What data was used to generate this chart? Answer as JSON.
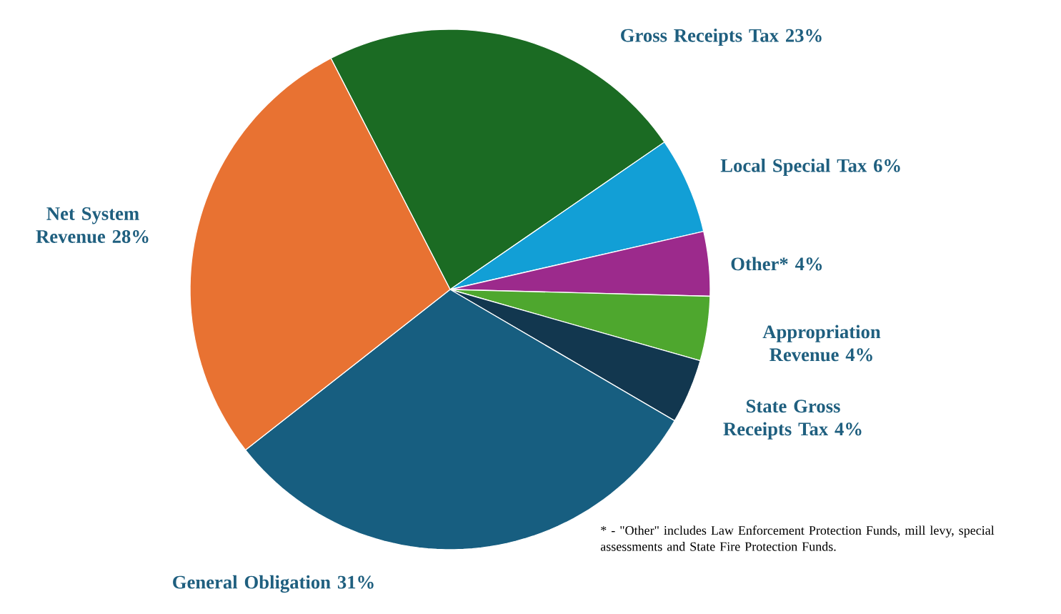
{
  "chart_data": {
    "type": "pie",
    "categories": [
      "Gross Receipts Tax",
      "Local Special Tax",
      "Other*",
      "Appropriation Revenue",
      "State Gross Receipts Tax",
      "General Obligation",
      "Net System Revenue"
    ],
    "values": [
      23,
      6,
      4,
      4,
      4,
      31,
      28
    ],
    "colors": [
      "#1b6b23",
      "#129fd6",
      "#9c2a8c",
      "#4ea72e",
      "#12374f",
      "#175e80",
      "#e87232"
    ],
    "value_labels": [
      "23%",
      "6%",
      "4%",
      "4%",
      "4%",
      "31%",
      "28%"
    ],
    "annotations": [
      "* - \"Other\" includes Law Enforcement Protection Funds, mill levy, special assessments and State Fire Protection Funds."
    ]
  }
}
